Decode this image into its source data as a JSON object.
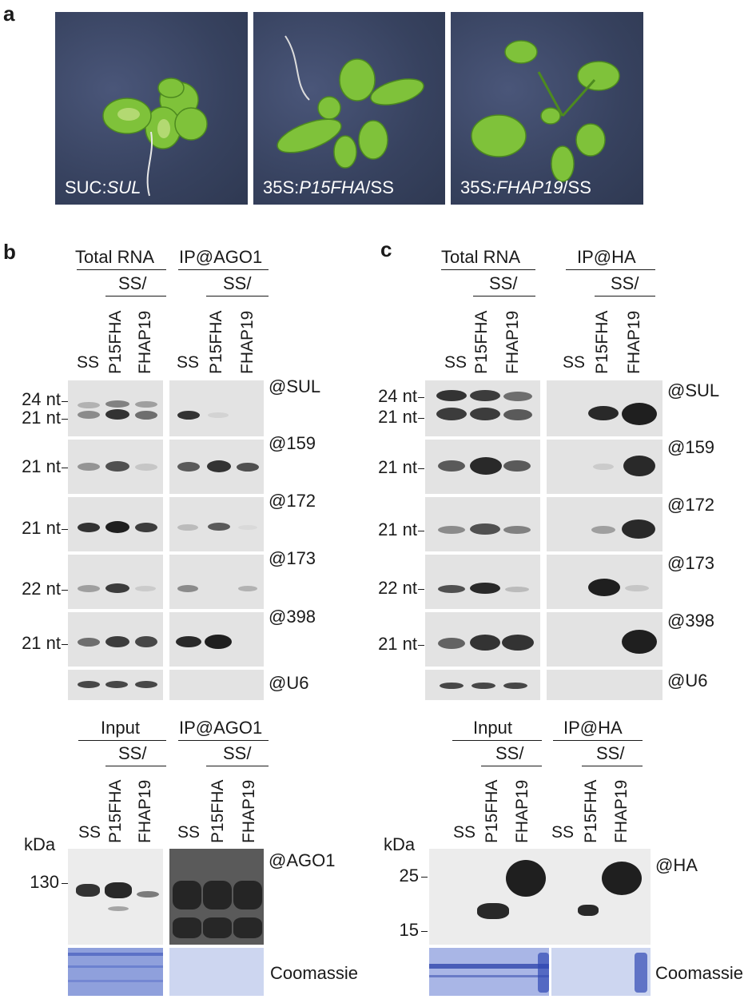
{
  "panel_labels": {
    "a": "a",
    "b": "b",
    "c": "c"
  },
  "photos": [
    {
      "prefix": "SUC:",
      "italic": "SUL",
      "suffix": ""
    },
    {
      "prefix": "35S:",
      "italic": "P15FHA",
      "suffix": "/SS"
    },
    {
      "prefix": "35S:",
      "italic": "FHAP19",
      "suffix": "/SS"
    }
  ],
  "panel_b": {
    "headers": {
      "total_rna": "Total RNA",
      "ip_ago1": "IP@AGO1",
      "ss_slash": "SS/"
    },
    "lanes": {
      "ss": "SS",
      "p15fha": "P15FHA",
      "fhap19": "FHAP19"
    },
    "size_markers": {
      "nt24": "24 nt",
      "nt21": "21 nt",
      "nt22": "22 nt"
    },
    "probes": [
      "@SUL",
      "@159",
      "@172",
      "@173",
      "@398",
      "@U6"
    ],
    "western": {
      "headers": {
        "input": "Input",
        "ip_ago1": "IP@AGO1",
        "ss_slash": "SS/"
      },
      "kda": "kDa",
      "marker": "130",
      "probe": "@AGO1",
      "stain": "Coomassie"
    }
  },
  "panel_c": {
    "headers": {
      "total_rna": "Total RNA",
      "ip_ha": "IP@HA",
      "ss_slash": "SS/"
    },
    "lanes": {
      "ss": "SS",
      "p15fha": "P15FHA",
      "fhap19": "FHAP19"
    },
    "size_markers": {
      "nt24": "24 nt",
      "nt21": "21 nt",
      "nt22": "22 nt"
    },
    "probes": [
      "@SUL",
      "@159",
      "@172",
      "@173",
      "@398",
      "@U6"
    ],
    "western": {
      "headers": {
        "input": "Input",
        "ip_ha": "IP@HA",
        "ss_slash": "SS/"
      },
      "kda": "kDa",
      "marker_25": "25",
      "marker_15": "15",
      "probe": "@HA",
      "stain": "Coomassie"
    }
  }
}
